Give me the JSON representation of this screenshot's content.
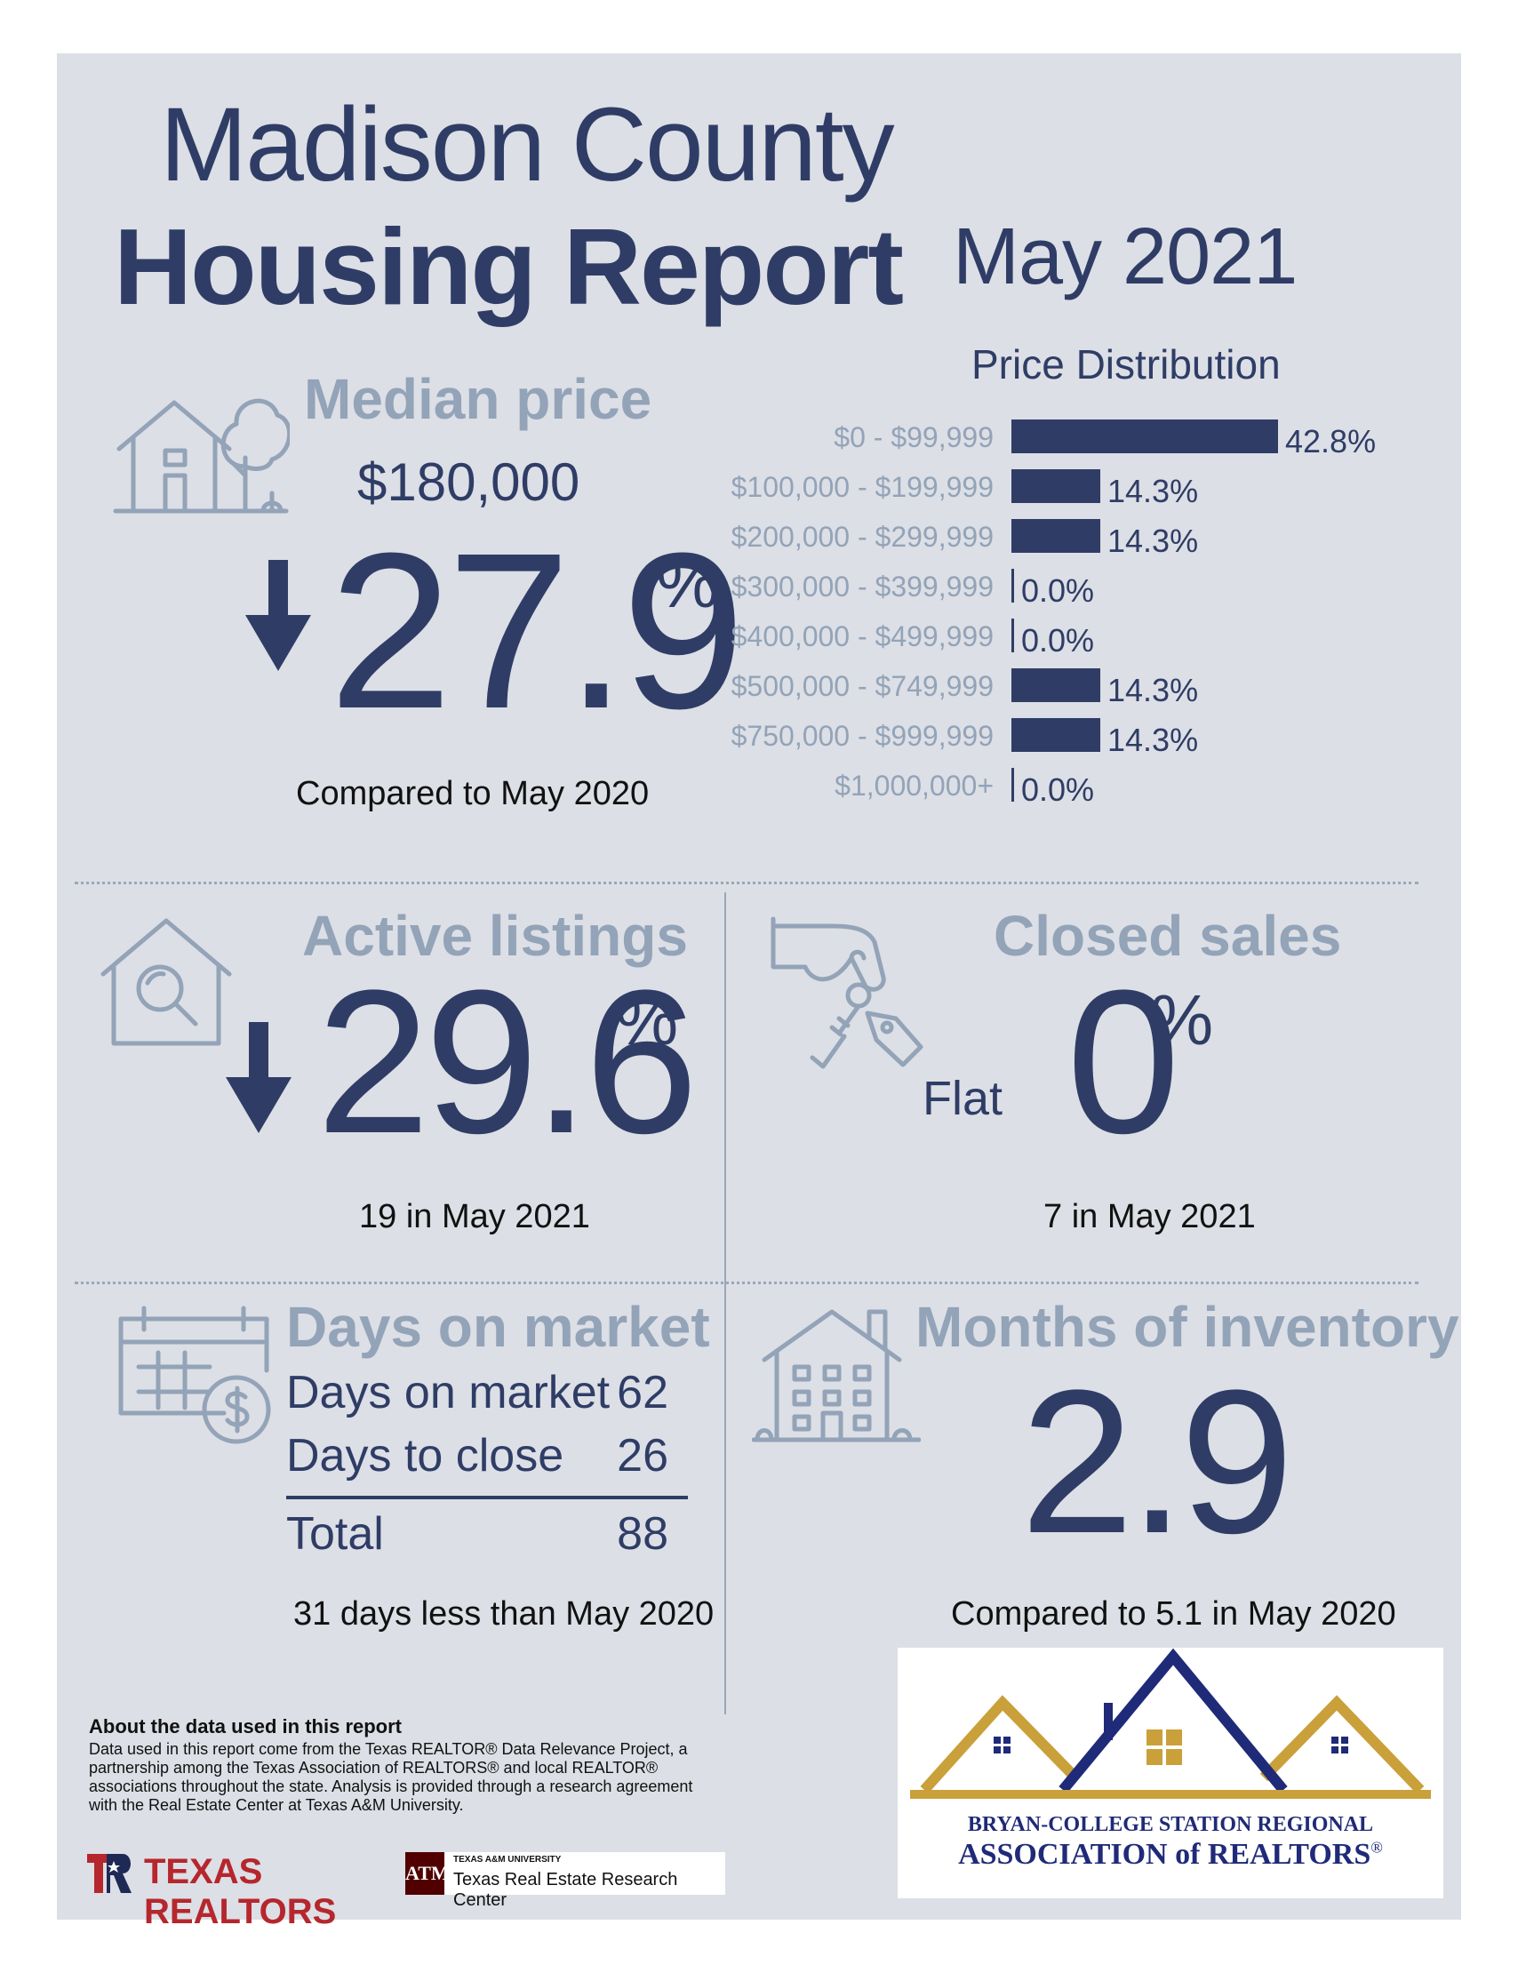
{
  "header": {
    "title_line1": "Madison County",
    "title_line2": "Housing Report",
    "period": "May 2021"
  },
  "median_price": {
    "label": "Median price",
    "value": "$180,000",
    "change": "27.9",
    "change_unit": "%",
    "direction": "down",
    "caption": "Compared to May 2020"
  },
  "price_distribution": {
    "title": "Price Distribution"
  },
  "chart_data": {
    "type": "bar",
    "orientation": "horizontal",
    "title": "Price Distribution",
    "categories": [
      "$0 - $99,999",
      "$100,000 - $199,999",
      "$200,000 - $299,999",
      "$300,000 - $399,999",
      "$400,000 - $499,999",
      "$500,000 - $749,999",
      "$750,000 - $999,999",
      "$1,000,000+"
    ],
    "values": [
      42.8,
      14.3,
      14.3,
      0.0,
      0.0,
      14.3,
      14.3,
      0.0
    ],
    "labels": [
      "42.8%",
      "14.3%",
      "14.3%",
      "0.0%",
      "0.0%",
      "14.3%",
      "14.3%",
      "0.0%"
    ],
    "xlim": [
      0,
      42.8
    ],
    "bar_color": "#2f3d66"
  },
  "active_listings": {
    "label": "Active listings",
    "change": "29.6",
    "change_unit": "%",
    "direction": "down",
    "caption": "19 in May 2021"
  },
  "closed_sales": {
    "label": "Closed sales",
    "qualifier": "Flat",
    "change": "0",
    "change_unit": "%",
    "caption": "7 in May 2021"
  },
  "days_on_market": {
    "label": "Days on market",
    "rows": [
      {
        "name": "Days on market",
        "value": "62"
      },
      {
        "name": "Days to close",
        "value": "26"
      }
    ],
    "total_label": "Total",
    "total_value": "88",
    "caption": "31 days less than May 2020"
  },
  "months_inventory": {
    "label": "Months of inventory",
    "value": "2.9",
    "caption": "Compared to 5.1 in May 2020"
  },
  "about": {
    "heading": "About the data used in this report",
    "body": "Data used in this report come from the Texas REALTOR® Data Relevance Project, a partnership among the Texas Association of REALTORS® and local REALTOR® associations throughout the state. Analysis is provided through a research agreement with the Real Estate Center at Texas A&M University."
  },
  "logos": {
    "texas_realtors": "TEXAS REALTORS",
    "tamu_small": "TEXAS A&M UNIVERSITY",
    "tamu_center": "Texas Real Estate Research Center",
    "bcs_line1": "BRYAN-COLLEGE STATION REGIONAL",
    "bcs_line2": "ASSOCIATION of REALTORS",
    "bcs_mark": "®"
  },
  "colors": {
    "navy": "#2f3d66",
    "slate": "#93a3b8",
    "panel": "#dcdfe5",
    "gold": "#c9a03a",
    "maroon": "#500000",
    "red": "#b5272d"
  }
}
